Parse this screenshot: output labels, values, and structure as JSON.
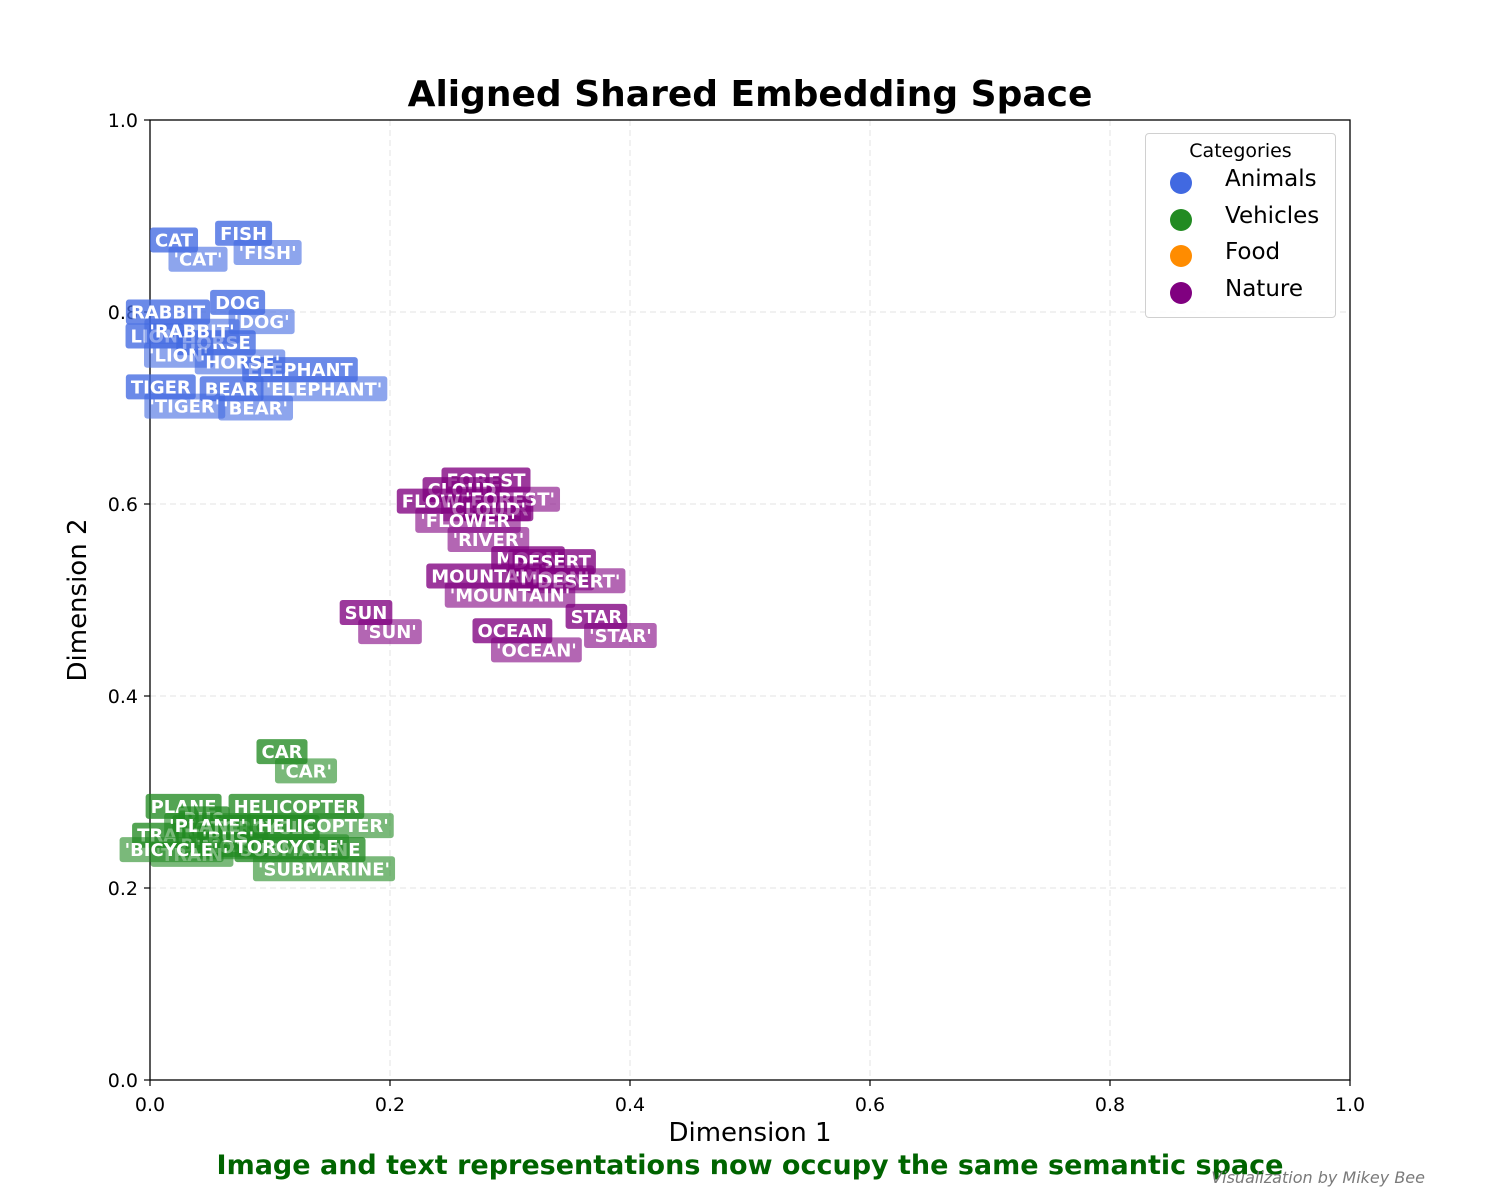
{
  "chart_data": {
    "type": "scatter",
    "title": "Aligned Shared Embedding Space",
    "xlabel": "Dimension 1",
    "ylabel": "Dimension 2",
    "xlim": [
      0.0,
      1.0
    ],
    "ylim": [
      0.0,
      1.0
    ],
    "xticks": [
      "0.0",
      "0.2",
      "0.4",
      "0.6",
      "0.8",
      "1.0"
    ],
    "yticks": [
      "0.0",
      "0.2",
      "0.4",
      "0.6",
      "0.8",
      "1.0"
    ],
    "grid": true,
    "legend": {
      "title": "Categories",
      "placement": "top-right",
      "entries": [
        {
          "name": "Animals",
          "color": "#4169E1"
        },
        {
          "name": "Vehicles",
          "color": "#228B22"
        },
        {
          "name": "Food",
          "color": "#FF8C00"
        },
        {
          "name": "Nature",
          "color": "#800080"
        }
      ]
    },
    "series": [
      {
        "name": "Animals",
        "color": "#4169E1",
        "image_points": [
          {
            "label": "CAT",
            "x": 0.02,
            "y": 0.875
          },
          {
            "label": "FISH",
            "x": 0.078,
            "y": 0.882
          },
          {
            "label": "DOG",
            "x": 0.073,
            "y": 0.81
          },
          {
            "label": "RABBIT",
            "x": 0.015,
            "y": 0.8
          },
          {
            "label": "LION",
            "x": 0.004,
            "y": 0.775
          },
          {
            "label": "HORSE",
            "x": 0.055,
            "y": 0.768
          },
          {
            "label": "ELEPHANT",
            "x": 0.125,
            "y": 0.74
          },
          {
            "label": "TIGER",
            "x": 0.009,
            "y": 0.722
          },
          {
            "label": "BEAR",
            "x": 0.068,
            "y": 0.72
          }
        ],
        "text_points": [
          {
            "label": "'CAT'",
            "x": 0.04,
            "y": 0.855
          },
          {
            "label": "'FISH'",
            "x": 0.098,
            "y": 0.862
          },
          {
            "label": "'DOG'",
            "x": 0.093,
            "y": 0.79
          },
          {
            "label": "'RABBIT'",
            "x": 0.035,
            "y": 0.78
          },
          {
            "label": "'LION'",
            "x": 0.024,
            "y": 0.755
          },
          {
            "label": "'HORSE'",
            "x": 0.075,
            "y": 0.748
          },
          {
            "label": "'ELEPHANT'",
            "x": 0.145,
            "y": 0.72
          },
          {
            "label": "'TIGER'",
            "x": 0.029,
            "y": 0.702
          },
          {
            "label": "'BEAR'",
            "x": 0.088,
            "y": 0.7
          }
        ]
      },
      {
        "name": "Vehicles",
        "color": "#228B22",
        "image_points": [
          {
            "label": "CAR",
            "x": 0.11,
            "y": 0.342
          },
          {
            "label": "PLANE",
            "x": 0.028,
            "y": 0.285
          },
          {
            "label": "HELICOPTER",
            "x": 0.122,
            "y": 0.285
          },
          {
            "label": "BUS",
            "x": 0.045,
            "y": 0.272
          },
          {
            "label": "MOTORCYCLE",
            "x": 0.08,
            "y": 0.263
          },
          {
            "label": "TRAIN",
            "x": 0.015,
            "y": 0.255
          },
          {
            "label": "BICYCLE",
            "x": 0.06,
            "y": 0.245
          },
          {
            "label": "SUBMARINE",
            "x": 0.125,
            "y": 0.24
          }
        ],
        "text_points": [
          {
            "label": "'CAR'",
            "x": 0.13,
            "y": 0.322
          },
          {
            "label": "'PLANE'",
            "x": 0.048,
            "y": 0.265
          },
          {
            "label": "'HELICOPTER'",
            "x": 0.142,
            "y": 0.265
          },
          {
            "label": "'BUS'",
            "x": 0.065,
            "y": 0.252
          },
          {
            "label": "'MOTORCYCLE'",
            "x": 0.1,
            "y": 0.243
          },
          {
            "label": "'TRAIN'",
            "x": 0.035,
            "y": 0.235
          },
          {
            "label": "'BICYCLE'",
            "x": 0.018,
            "y": 0.24
          },
          {
            "label": "'SUBMARINE'",
            "x": 0.145,
            "y": 0.22
          }
        ]
      },
      {
        "name": "Nature",
        "color": "#800080",
        "image_points": [
          {
            "label": "FOREST",
            "x": 0.28,
            "y": 0.625
          },
          {
            "label": "CLOUD",
            "x": 0.26,
            "y": 0.615
          },
          {
            "label": "FLOWER",
            "x": 0.245,
            "y": 0.603
          },
          {
            "label": "RIVER",
            "x": 0.29,
            "y": 0.595
          },
          {
            "label": "MOON",
            "x": 0.315,
            "y": 0.543
          },
          {
            "label": "DESERT",
            "x": 0.335,
            "y": 0.54
          },
          {
            "label": "MOUNTAIN",
            "x": 0.28,
            "y": 0.525
          },
          {
            "label": "SUN",
            "x": 0.18,
            "y": 0.487
          },
          {
            "label": "STAR",
            "x": 0.372,
            "y": 0.483
          },
          {
            "label": "OCEAN",
            "x": 0.302,
            "y": 0.468
          }
        ],
        "text_points": [
          {
            "label": "'FOREST'",
            "x": 0.3,
            "y": 0.605
          },
          {
            "label": "'CLOUD'",
            "x": 0.28,
            "y": 0.595
          },
          {
            "label": "'FLOWER'",
            "x": 0.265,
            "y": 0.583
          },
          {
            "label": "'RIVER'",
            "x": 0.282,
            "y": 0.563
          },
          {
            "label": "'MOON'",
            "x": 0.335,
            "y": 0.523
          },
          {
            "label": "'DESERT'",
            "x": 0.355,
            "y": 0.52
          },
          {
            "label": "'MOUNTAIN'",
            "x": 0.3,
            "y": 0.505
          },
          {
            "label": "'SUN'",
            "x": 0.2,
            "y": 0.467
          },
          {
            "label": "'STAR'",
            "x": 0.392,
            "y": 0.463
          },
          {
            "label": "'OCEAN'",
            "x": 0.322,
            "y": 0.448
          }
        ]
      }
    ]
  },
  "footer": {
    "subtitle": "Image and text representations now occupy the same semantic space",
    "credit": "Visualization by Mikey Bee"
  }
}
